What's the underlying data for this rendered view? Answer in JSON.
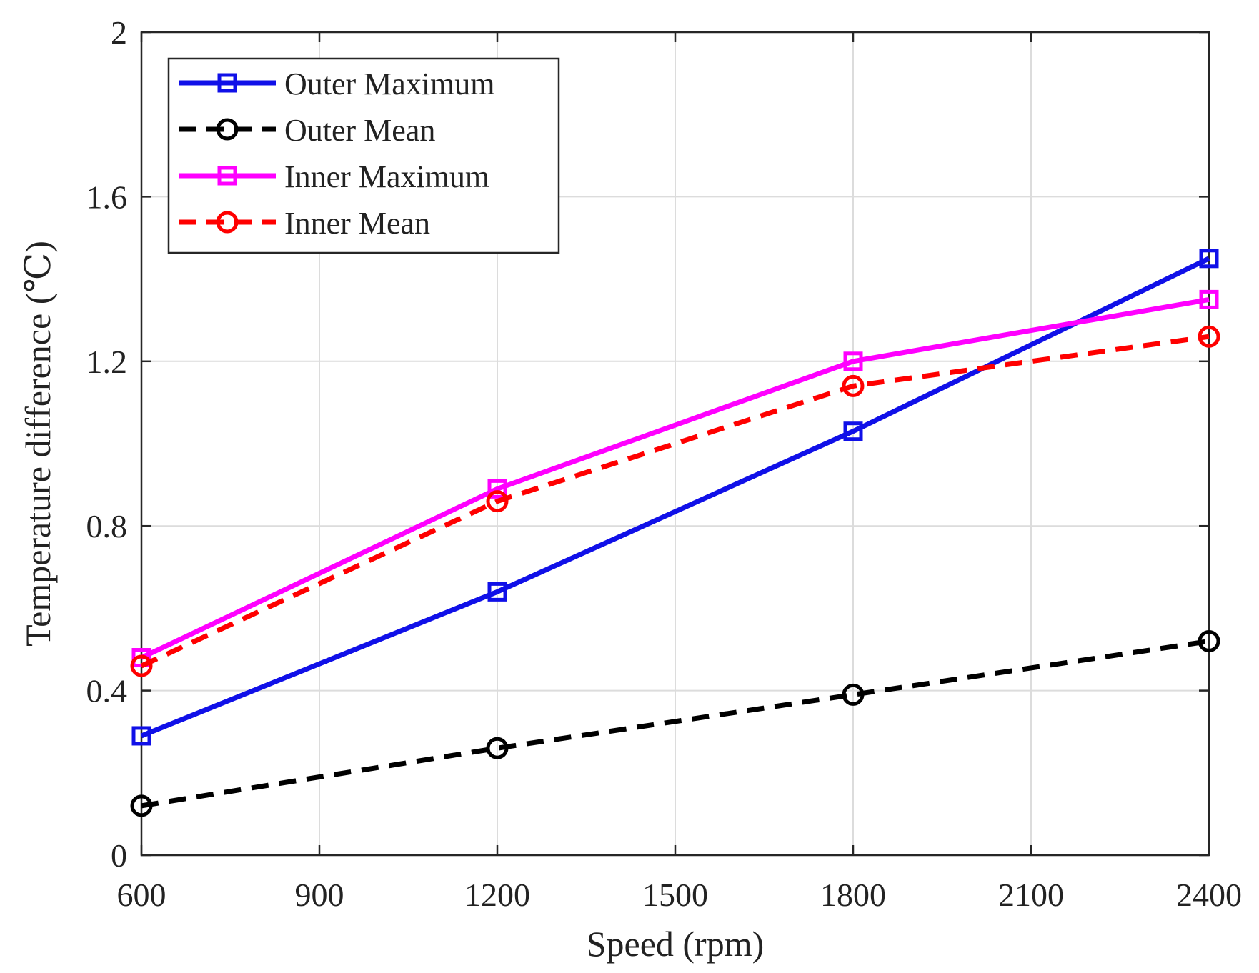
{
  "chart_data": {
    "type": "line",
    "title": "",
    "xlabel": "Speed (rpm)",
    "ylabel": "Temperature difference (℃)",
    "xlim": [
      600,
      2400
    ],
    "ylim": [
      0,
      2
    ],
    "x_ticks": [
      600,
      900,
      1200,
      1500,
      1800,
      2100,
      2400
    ],
    "y_ticks": [
      0,
      0.4,
      0.8,
      1.2,
      1.6,
      2
    ],
    "y_tick_labels": [
      "0",
      "0.4",
      "0.8",
      "1.2",
      "1.6",
      "2"
    ],
    "grid": true,
    "legend_position": "top-left",
    "x": [
      600,
      1200,
      1800,
      2400
    ],
    "series": [
      {
        "name": "Outer Maximum",
        "values": [
          0.29,
          0.64,
          1.03,
          1.45
        ],
        "color": "#1010e8",
        "dash": "solid",
        "marker": "square"
      },
      {
        "name": "Outer Mean",
        "values": [
          0.12,
          0.26,
          0.39,
          0.52
        ],
        "color": "#000000",
        "dash": "dashed",
        "marker": "circle"
      },
      {
        "name": "Inner Maximum",
        "values": [
          0.48,
          0.89,
          1.2,
          1.35
        ],
        "color": "#ff00ff",
        "dash": "solid",
        "marker": "square"
      },
      {
        "name": "Inner Mean",
        "values": [
          0.46,
          0.86,
          1.14,
          1.26
        ],
        "color": "#ff0000",
        "dash": "dashed",
        "marker": "circle"
      }
    ]
  }
}
